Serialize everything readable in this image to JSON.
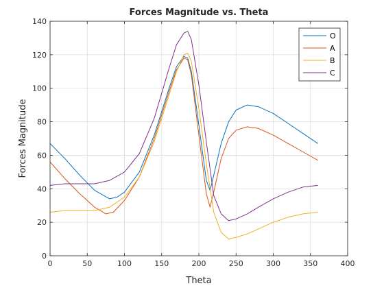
{
  "chart_data": {
    "type": "line",
    "title": "Forces Magnitude vs. Theta",
    "xlabel": "Theta",
    "ylabel": "Forces Magnitude",
    "xlim": [
      0,
      400
    ],
    "ylim": [
      0,
      140
    ],
    "xticks": [
      0,
      50,
      100,
      150,
      200,
      250,
      300,
      350,
      400
    ],
    "yticks": [
      0,
      20,
      40,
      60,
      80,
      100,
      120,
      140
    ],
    "grid": true,
    "legend": "top-right",
    "series": [
      {
        "name": "O",
        "color": "#0072BD",
        "x": [
          0,
          20,
          40,
          60,
          80,
          90,
          100,
          120,
          140,
          160,
          170,
          180,
          185,
          190,
          200,
          210,
          215,
          220,
          230,
          240,
          250,
          265,
          280,
          300,
          320,
          340,
          360
        ],
        "y": [
          67,
          58,
          48,
          39,
          34,
          35,
          38,
          50,
          72,
          100,
          113,
          119,
          118,
          110,
          78,
          45,
          39,
          48,
          67,
          80,
          87,
          90,
          89,
          85,
          79,
          73,
          67
        ]
      },
      {
        "name": "A",
        "color": "#D95319",
        "x": [
          0,
          20,
          40,
          60,
          75,
          85,
          100,
          120,
          140,
          160,
          170,
          180,
          185,
          190,
          200,
          210,
          215,
          220,
          230,
          240,
          250,
          265,
          280,
          300,
          320,
          340,
          360
        ],
        "y": [
          56,
          46,
          37,
          29,
          25,
          26,
          33,
          47,
          70,
          98,
          111,
          118,
          117,
          108,
          72,
          37,
          29,
          38,
          58,
          70,
          75,
          77,
          76,
          72,
          67,
          62,
          57
        ]
      },
      {
        "name": "B",
        "color": "#EDB120",
        "x": [
          0,
          20,
          40,
          60,
          80,
          100,
          120,
          140,
          160,
          170,
          180,
          185,
          190,
          200,
          210,
          220,
          230,
          240,
          250,
          265,
          280,
          300,
          320,
          340,
          360
        ],
        "y": [
          26,
          27,
          27,
          27,
          29,
          35,
          47,
          68,
          96,
          110,
          120,
          121,
          116,
          88,
          55,
          26,
          14,
          10,
          11,
          13,
          16,
          20,
          23,
          25,
          26
        ]
      },
      {
        "name": "C",
        "color": "#7E2F8E",
        "x": [
          0,
          20,
          40,
          60,
          80,
          100,
          120,
          140,
          160,
          170,
          180,
          185,
          190,
          200,
          210,
          220,
          230,
          240,
          250,
          265,
          280,
          300,
          320,
          340,
          360
        ],
        "y": [
          42,
          43,
          43,
          43,
          45,
          50,
          61,
          82,
          112,
          126,
          133,
          134,
          129,
          102,
          68,
          36,
          25,
          21,
          22,
          25,
          29,
          34,
          38,
          41,
          42
        ]
      }
    ]
  }
}
